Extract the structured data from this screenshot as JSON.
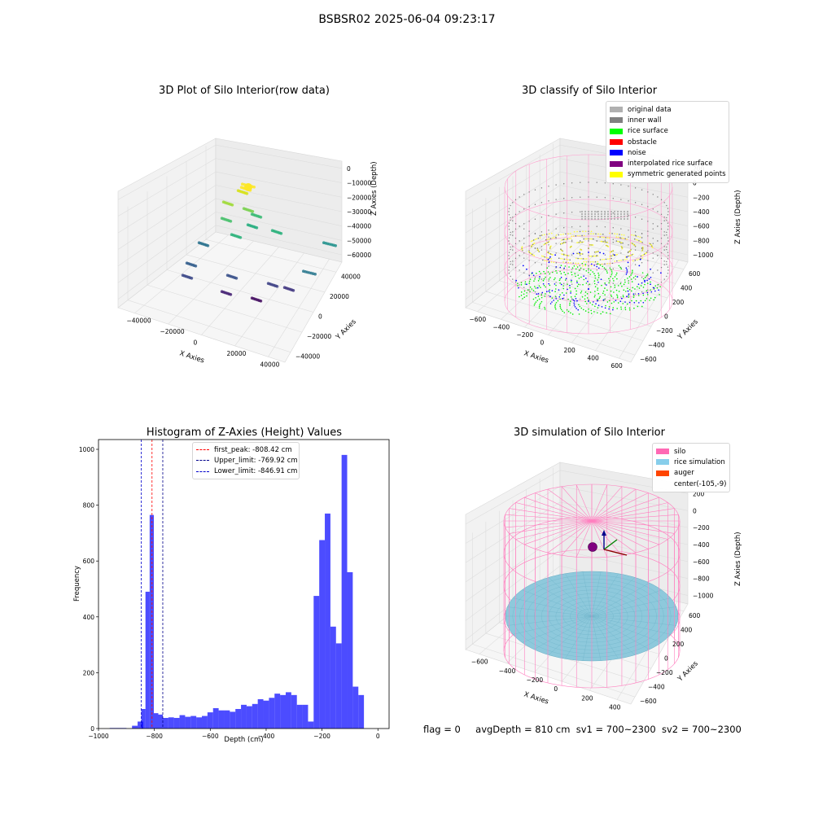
{
  "suptitle": "BSBSR02 2025-06-04 09:23:17",
  "panels": {
    "raw": {
      "title": "3D Plot of Silo Interior(row data)",
      "xlabel": "X Axies",
      "ylabel": "Y Axies",
      "zlabel": "Z Axies (Depth)",
      "xticks": [
        "−40000",
        "−20000",
        "0",
        "20000",
        "40000"
      ],
      "yticks": [
        "−40000",
        "−20000",
        "0",
        "20000",
        "40000"
      ],
      "zticks": [
        "0",
        "−10000",
        "−20000",
        "−30000",
        "−40000",
        "−50000",
        "−60000"
      ]
    },
    "classify": {
      "title": "3D classify of Silo Interior",
      "xlabel": "X Axies",
      "ylabel": "Y Axies",
      "zlabel": "Z Axies (Depth)",
      "xticks": [
        "−600",
        "−400",
        "−200",
        "0",
        "200",
        "400",
        "600"
      ],
      "yticks": [
        "−600",
        "−400",
        "−200",
        "0",
        "200",
        "400",
        "600"
      ],
      "zticks": [
        "200",
        "0",
        "−200",
        "−400",
        "−600",
        "−800",
        "−1000"
      ],
      "legend": [
        {
          "label": "original data",
          "color": "#b0b0b0"
        },
        {
          "label": "inner wall",
          "color": "#808080"
        },
        {
          "label": "rice surface",
          "color": "#00ff00"
        },
        {
          "label": "obstacle",
          "color": "#ff0000"
        },
        {
          "label": "noise",
          "color": "#0000ff"
        },
        {
          "label": "interpolated rice surface",
          "color": "#800080"
        },
        {
          "label": "symmetric generated points",
          "color": "#ffff00"
        }
      ]
    },
    "simulation": {
      "title": "3D simulation of Silo Interior",
      "xlabel": "X Axies",
      "ylabel": "Y Axies",
      "zlabel": "Z Axies (Depth)",
      "xticks": [
        "−600",
        "−400",
        "−200",
        "0",
        "200",
        "400"
      ],
      "yticks": [
        "−600",
        "−400",
        "−200",
        "0",
        "200",
        "400",
        "600"
      ],
      "zticks": [
        "200",
        "0",
        "−200",
        "−400",
        "−600",
        "−800",
        "−1000"
      ],
      "legend": [
        {
          "label": "silo",
          "color": "#ff69b4"
        },
        {
          "label": "rice simulation",
          "color": "#87ceeb"
        },
        {
          "label": "auger",
          "color": "#ff4500"
        },
        {
          "label": "center(-105,-9)",
          "color": ""
        }
      ]
    }
  },
  "footer": {
    "flag": "flag = 0",
    "avg_depth": "avgDepth = 810 cm",
    "sv1": "sv1 = 700~2300",
    "sv2": "sv2 = 700~2300"
  },
  "chart_data": [
    {
      "type": "bar",
      "title": "Histogram of Z-Axies (Height) Values",
      "xlabel": "Depth (cm)",
      "ylabel": "Frequency",
      "xlim": [
        -1000,
        40
      ],
      "ylim": [
        0,
        1035
      ],
      "xticks": [
        -1000,
        -800,
        -600,
        -400,
        -200,
        0
      ],
      "yticks": [
        0,
        200,
        400,
        600,
        800,
        1000
      ],
      "bin_width": 20,
      "bar_color": "#0000ff",
      "bins": [
        {
          "x0": -960,
          "value": 2
        },
        {
          "x0": -940,
          "value": 2
        },
        {
          "x0": -920,
          "value": 2
        },
        {
          "x0": -900,
          "value": 0
        },
        {
          "x0": -880,
          "value": 10
        },
        {
          "x0": -860,
          "value": 25
        },
        {
          "x0": -846.9,
          "x1": -831.9,
          "value": 70
        },
        {
          "x0": -831.9,
          "x1": -816.9,
          "value": 490
        },
        {
          "x0": -816.9,
          "x1": -801.9,
          "value": 765
        },
        {
          "x0": -801.9,
          "x1": -785.9,
          "value": 55
        },
        {
          "x0": -785.9,
          "x1": -769.9,
          "value": 50
        },
        {
          "x0": -770,
          "value": 38
        },
        {
          "x0": -750,
          "value": 40
        },
        {
          "x0": -730,
          "value": 38
        },
        {
          "x0": -710,
          "value": 48
        },
        {
          "x0": -690,
          "value": 42
        },
        {
          "x0": -670,
          "value": 45
        },
        {
          "x0": -650,
          "value": 40
        },
        {
          "x0": -630,
          "value": 45
        },
        {
          "x0": -610,
          "value": 58
        },
        {
          "x0": -590,
          "value": 73
        },
        {
          "x0": -570,
          "value": 65
        },
        {
          "x0": -550,
          "value": 65
        },
        {
          "x0": -530,
          "value": 60
        },
        {
          "x0": -510,
          "value": 70
        },
        {
          "x0": -490,
          "value": 85
        },
        {
          "x0": -470,
          "value": 80
        },
        {
          "x0": -450,
          "value": 88
        },
        {
          "x0": -430,
          "value": 105
        },
        {
          "x0": -410,
          "value": 100
        },
        {
          "x0": -390,
          "value": 110
        },
        {
          "x0": -370,
          "value": 125
        },
        {
          "x0": -350,
          "value": 120
        },
        {
          "x0": -330,
          "value": 130
        },
        {
          "x0": -310,
          "value": 120
        },
        {
          "x0": -290,
          "value": 85
        },
        {
          "x0": -270,
          "value": 85
        },
        {
          "x0": -250,
          "value": 25
        },
        {
          "x0": -230,
          "value": 475
        },
        {
          "x0": -210,
          "value": 675
        },
        {
          "x0": -190,
          "value": 770
        },
        {
          "x0": -170,
          "value": 365
        },
        {
          "x0": -150,
          "value": 305
        },
        {
          "x0": -130,
          "value": 980
        },
        {
          "x0": -110,
          "value": 560
        },
        {
          "x0": -90,
          "value": 150
        },
        {
          "x0": -70,
          "value": 120
        }
      ],
      "vlines": [
        {
          "name": "first_peak",
          "x": -808.42,
          "label": "first_peak: -808.42 cm",
          "color": "#ff0000"
        },
        {
          "name": "Upper_limit",
          "x": -769.92,
          "label": "Upper_limit: -769.92 cm",
          "color": "#00008b"
        },
        {
          "name": "Lower_limit",
          "x": -846.91,
          "label": "Lower_limit: -846.91 cm",
          "color": "#0000cd"
        }
      ],
      "legend_position": "top-center"
    }
  ]
}
